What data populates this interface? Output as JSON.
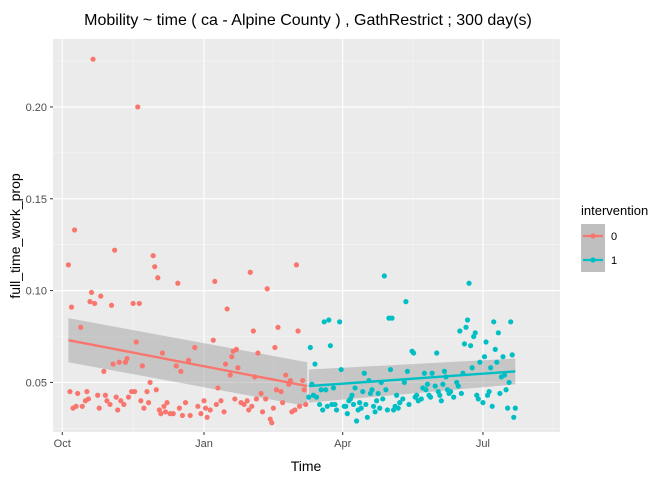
{
  "chart_data": {
    "type": "scatter",
    "title": "Mobility ~ time ( ca - Alpine County ) , GathRestrict ; 300  day(s)",
    "xlabel": "Time",
    "ylabel": "full_time_work_prop",
    "x_ticks": [
      {
        "label": "Oct",
        "date": "2020-10-01"
      },
      {
        "label": "Jan",
        "date": "2021-01-01"
      },
      {
        "label": "Apr",
        "date": "2021-04-01"
      },
      {
        "label": "Jul",
        "date": "2021-07-01"
      }
    ],
    "y_ticks": [
      0.05,
      0.1,
      0.15,
      0.2
    ],
    "y_tick_labels": [
      "0.05",
      "0.10",
      "0.15",
      "0.20"
    ],
    "xlim": [
      "2020-09-25",
      "2021-08-20"
    ],
    "ylim": [
      0.023,
      0.237
    ],
    "grid": true,
    "legend": {
      "title": "intervention",
      "position": "right",
      "entries": [
        {
          "label": "0",
          "color": "#F8766D"
        },
        {
          "label": "1",
          "color": "#00BFC4"
        }
      ]
    },
    "series": [
      {
        "name": "0",
        "color": "#F8766D",
        "points": [
          [
            "2020-10-05",
            0.114
          ],
          [
            "2020-10-06",
            0.045
          ],
          [
            "2020-10-07",
            0.091
          ],
          [
            "2020-10-08",
            0.036
          ],
          [
            "2020-10-09",
            0.133
          ],
          [
            "2020-10-10",
            0.037
          ],
          [
            "2020-10-11",
            0.044
          ],
          [
            "2020-10-13",
            0.08
          ],
          [
            "2020-10-14",
            0.037
          ],
          [
            "2020-10-16",
            0.04
          ],
          [
            "2020-10-17",
            0.045
          ],
          [
            "2020-10-18",
            0.041
          ],
          [
            "2020-10-19",
            0.094
          ],
          [
            "2020-10-20",
            0.099
          ],
          [
            "2020-10-21",
            0.226
          ],
          [
            "2020-10-22",
            0.093
          ],
          [
            "2020-10-24",
            0.043
          ],
          [
            "2020-10-25",
            0.036
          ],
          [
            "2020-10-26",
            0.097
          ],
          [
            "2020-10-28",
            0.056
          ],
          [
            "2020-10-29",
            0.043
          ],
          [
            "2020-10-30",
            0.04
          ],
          [
            "2020-11-01",
            0.038
          ],
          [
            "2020-11-02",
            0.092
          ],
          [
            "2020-11-03",
            0.06
          ],
          [
            "2020-11-04",
            0.122
          ],
          [
            "2020-11-05",
            0.042
          ],
          [
            "2020-11-06",
            0.035
          ],
          [
            "2020-11-07",
            0.061
          ],
          [
            "2020-11-08",
            0.04
          ],
          [
            "2020-11-10",
            0.038
          ],
          [
            "2020-11-11",
            0.061
          ],
          [
            "2020-11-12",
            0.063
          ],
          [
            "2020-11-13",
            0.042
          ],
          [
            "2020-11-15",
            0.045
          ],
          [
            "2020-11-16",
            0.093
          ],
          [
            "2020-11-17",
            0.045
          ],
          [
            "2020-11-18",
            0.072
          ],
          [
            "2020-11-19",
            0.2
          ],
          [
            "2020-11-20",
            0.093
          ],
          [
            "2020-11-21",
            0.04
          ],
          [
            "2020-11-22",
            0.059
          ],
          [
            "2020-11-23",
            0.036
          ],
          [
            "2020-11-25",
            0.045
          ],
          [
            "2020-11-26",
            0.039
          ],
          [
            "2020-11-27",
            0.05
          ],
          [
            "2020-11-29",
            0.119
          ],
          [
            "2020-11-30",
            0.113
          ],
          [
            "2020-12-01",
            0.046
          ],
          [
            "2020-12-02",
            0.107
          ],
          [
            "2020-12-03",
            0.035
          ],
          [
            "2020-12-04",
            0.033
          ],
          [
            "2020-12-05",
            0.066
          ],
          [
            "2020-12-06",
            0.037
          ],
          [
            "2020-12-07",
            0.034
          ],
          [
            "2020-12-08",
            0.039
          ],
          [
            "2020-12-10",
            0.033
          ],
          [
            "2020-12-12",
            0.033
          ],
          [
            "2020-12-14",
            0.059
          ],
          [
            "2020-12-15",
            0.104
          ],
          [
            "2020-12-16",
            0.036
          ],
          [
            "2020-12-17",
            0.056
          ],
          [
            "2020-12-18",
            0.032
          ],
          [
            "2020-12-20",
            0.039
          ],
          [
            "2020-12-22",
            0.062
          ],
          [
            "2020-12-23",
            0.032
          ],
          [
            "2020-12-26",
            0.069
          ],
          [
            "2020-12-28",
            0.037
          ],
          [
            "2020-12-30",
            0.033
          ],
          [
            "2021-01-01",
            0.04
          ],
          [
            "2021-01-02",
            0.036
          ],
          [
            "2021-01-03",
            0.031
          ],
          [
            "2021-01-05",
            0.035
          ],
          [
            "2021-01-07",
            0.073
          ],
          [
            "2021-01-08",
            0.105
          ],
          [
            "2021-01-09",
            0.038
          ],
          [
            "2021-01-10",
            0.047
          ],
          [
            "2021-01-12",
            0.04
          ],
          [
            "2021-01-14",
            0.034
          ],
          [
            "2021-01-15",
            0.06
          ],
          [
            "2021-01-16",
            0.09
          ],
          [
            "2021-01-18",
            0.054
          ],
          [
            "2021-01-19",
            0.064
          ],
          [
            "2021-01-20",
            0.067
          ],
          [
            "2021-01-21",
            0.041
          ],
          [
            "2021-01-22",
            0.068
          ],
          [
            "2021-01-23",
            0.058
          ],
          [
            "2021-01-25",
            0.039
          ],
          [
            "2021-01-27",
            0.038
          ],
          [
            "2021-01-29",
            0.04
          ],
          [
            "2021-01-30",
            0.035
          ],
          [
            "2021-01-31",
            0.11
          ],
          [
            "2021-02-01",
            0.037
          ],
          [
            "2021-02-02",
            0.078
          ],
          [
            "2021-02-03",
            0.053
          ],
          [
            "2021-02-04",
            0.041
          ],
          [
            "2021-02-05",
            0.066
          ],
          [
            "2021-02-07",
            0.044
          ],
          [
            "2021-02-08",
            0.034
          ],
          [
            "2021-02-10",
            0.041
          ],
          [
            "2021-02-11",
            0.101
          ],
          [
            "2021-02-13",
            0.03
          ],
          [
            "2021-02-14",
            0.028
          ],
          [
            "2021-02-15",
            0.036
          ],
          [
            "2021-02-16",
            0.069
          ],
          [
            "2021-02-17",
            0.046
          ],
          [
            "2021-02-18",
            0.08
          ],
          [
            "2021-02-20",
            0.045
          ],
          [
            "2021-02-21",
            0.039
          ],
          [
            "2021-02-23",
            0.054
          ],
          [
            "2021-02-25",
            0.049
          ],
          [
            "2021-02-26",
            0.051
          ],
          [
            "2021-02-27",
            0.034
          ],
          [
            "2021-03-01",
            0.035
          ],
          [
            "2021-03-02",
            0.114
          ],
          [
            "2021-03-03",
            0.078
          ],
          [
            "2021-03-04",
            0.037
          ],
          [
            "2021-03-06",
            0.051
          ],
          [
            "2021-03-07",
            0.046
          ],
          [
            "2021-03-08",
            0.038
          ]
        ],
        "trend": {
          "x": [
            "2020-10-05",
            "2021-03-09"
          ],
          "y": [
            0.073,
            0.048
          ],
          "band_lo": [
            0.061,
            0.037
          ],
          "band_hi": [
            0.085,
            0.061
          ]
        }
      },
      {
        "name": "1",
        "color": "#00BFC4",
        "points": [
          [
            "2021-03-10",
            0.042
          ],
          [
            "2021-03-11",
            0.069
          ],
          [
            "2021-03-12",
            0.049
          ],
          [
            "2021-03-13",
            0.043
          ],
          [
            "2021-03-14",
            0.06
          ],
          [
            "2021-03-15",
            0.042
          ],
          [
            "2021-03-17",
            0.038
          ],
          [
            "2021-03-18",
            0.046
          ],
          [
            "2021-03-19",
            0.035
          ],
          [
            "2021-03-20",
            0.083
          ],
          [
            "2021-03-21",
            0.046
          ],
          [
            "2021-03-22",
            0.037
          ],
          [
            "2021-03-23",
            0.084
          ],
          [
            "2021-03-24",
            0.07
          ],
          [
            "2021-03-25",
            0.038
          ],
          [
            "2021-03-26",
            0.047
          ],
          [
            "2021-03-27",
            0.038
          ],
          [
            "2021-03-28",
            0.035
          ],
          [
            "2021-03-30",
            0.083
          ],
          [
            "2021-03-31",
            0.057
          ],
          [
            "2021-04-02",
            0.037
          ],
          [
            "2021-04-03",
            0.037
          ],
          [
            "2021-04-04",
            0.033
          ],
          [
            "2021-04-05",
            0.04
          ],
          [
            "2021-04-06",
            0.041
          ],
          [
            "2021-04-07",
            0.043
          ],
          [
            "2021-04-08",
            0.038
          ],
          [
            "2021-04-09",
            0.047
          ],
          [
            "2021-04-10",
            0.029
          ],
          [
            "2021-04-11",
            0.035
          ],
          [
            "2021-04-12",
            0.039
          ],
          [
            "2021-04-13",
            0.036
          ],
          [
            "2021-04-14",
            0.045
          ],
          [
            "2021-04-15",
            0.055
          ],
          [
            "2021-04-16",
            0.038
          ],
          [
            "2021-04-17",
            0.031
          ],
          [
            "2021-04-18",
            0.051
          ],
          [
            "2021-04-19",
            0.044
          ],
          [
            "2021-04-20",
            0.046
          ],
          [
            "2021-04-21",
            0.037
          ],
          [
            "2021-04-22",
            0.034
          ],
          [
            "2021-04-23",
            0.04
          ],
          [
            "2021-04-24",
            0.044
          ],
          [
            "2021-04-25",
            0.036
          ],
          [
            "2021-04-26",
            0.05
          ],
          [
            "2021-04-27",
            0.041
          ],
          [
            "2021-04-28",
            0.108
          ],
          [
            "2021-04-29",
            0.046
          ],
          [
            "2021-04-30",
            0.035
          ],
          [
            "2021-05-01",
            0.085
          ],
          [
            "2021-05-02",
            0.057
          ],
          [
            "2021-05-03",
            0.085
          ],
          [
            "2021-05-04",
            0.035
          ],
          [
            "2021-05-05",
            0.037
          ],
          [
            "2021-05-06",
            0.043
          ],
          [
            "2021-05-07",
            0.036
          ],
          [
            "2021-05-08",
            0.039
          ],
          [
            "2021-05-10",
            0.041
          ],
          [
            "2021-05-11",
            0.05
          ],
          [
            "2021-05-12",
            0.094
          ],
          [
            "2021-05-13",
            0.056
          ],
          [
            "2021-05-14",
            0.038
          ],
          [
            "2021-05-16",
            0.067
          ],
          [
            "2021-05-17",
            0.066
          ],
          [
            "2021-05-18",
            0.042
          ],
          [
            "2021-05-19",
            0.043
          ],
          [
            "2021-05-20",
            0.04
          ],
          [
            "2021-05-22",
            0.041
          ],
          [
            "2021-05-23",
            0.047
          ],
          [
            "2021-05-24",
            0.055
          ],
          [
            "2021-05-25",
            0.046
          ],
          [
            "2021-05-26",
            0.049
          ],
          [
            "2021-05-27",
            0.043
          ],
          [
            "2021-05-28",
            0.042
          ],
          [
            "2021-05-29",
            0.055
          ],
          [
            "2021-05-31",
            0.048
          ],
          [
            "2021-06-01",
            0.066
          ],
          [
            "2021-06-02",
            0.045
          ],
          [
            "2021-06-03",
            0.043
          ],
          [
            "2021-06-04",
            0.04
          ],
          [
            "2021-06-05",
            0.049
          ],
          [
            "2021-06-06",
            0.056
          ],
          [
            "2021-06-07",
            0.053
          ],
          [
            "2021-06-08",
            0.046
          ],
          [
            "2021-06-09",
            0.044
          ],
          [
            "2021-06-10",
            0.045
          ],
          [
            "2021-06-12",
            0.042
          ],
          [
            "2021-06-14",
            0.05
          ],
          [
            "2021-06-15",
            0.048
          ],
          [
            "2021-06-16",
            0.078
          ],
          [
            "2021-06-17",
            0.044
          ],
          [
            "2021-06-18",
            0.055
          ],
          [
            "2021-06-19",
            0.071
          ],
          [
            "2021-06-20",
            0.08
          ],
          [
            "2021-06-21",
            0.084
          ],
          [
            "2021-06-22",
            0.104
          ],
          [
            "2021-06-23",
            0.07
          ],
          [
            "2021-06-24",
            0.058
          ],
          [
            "2021-06-25",
            0.075
          ],
          [
            "2021-06-26",
            0.077
          ],
          [
            "2021-06-27",
            0.043
          ],
          [
            "2021-06-28",
            0.041
          ],
          [
            "2021-06-29",
            0.061
          ],
          [
            "2021-07-01",
            0.039
          ],
          [
            "2021-07-02",
            0.064
          ],
          [
            "2021-07-03",
            0.072
          ],
          [
            "2021-07-04",
            0.043
          ],
          [
            "2021-07-05",
            0.045
          ],
          [
            "2021-07-06",
            0.058
          ],
          [
            "2021-07-07",
            0.037
          ],
          [
            "2021-07-08",
            0.083
          ],
          [
            "2021-07-09",
            0.068
          ],
          [
            "2021-07-10",
            0.061
          ],
          [
            "2021-07-11",
            0.077
          ],
          [
            "2021-07-12",
            0.044
          ],
          [
            "2021-07-13",
            0.053
          ],
          [
            "2021-07-14",
            0.064
          ],
          [
            "2021-07-15",
            0.054
          ],
          [
            "2021-07-16",
            0.046
          ],
          [
            "2021-07-17",
            0.036
          ],
          [
            "2021-07-18",
            0.05
          ],
          [
            "2021-07-19",
            0.083
          ],
          [
            "2021-07-20",
            0.065
          ],
          [
            "2021-07-21",
            0.031
          ],
          [
            "2021-07-22",
            0.036
          ]
        ],
        "trend": {
          "x": [
            "2021-03-10",
            "2021-07-22"
          ],
          "y": [
            0.048,
            0.056
          ],
          "band_lo": [
            0.039,
            0.049
          ],
          "band_hi": [
            0.057,
            0.063
          ]
        }
      }
    ]
  }
}
